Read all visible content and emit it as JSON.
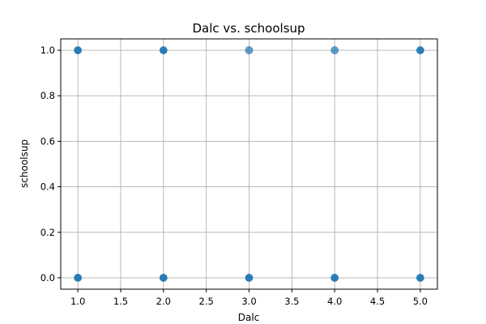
{
  "chart_data": {
    "type": "scatter",
    "title": "Dalc vs. schoolsup",
    "xlabel": "Dalc",
    "ylabel": "schoolsup",
    "xlim": [
      0.8,
      5.2
    ],
    "ylim": [
      -0.05,
      1.05
    ],
    "xticks": [
      "1.0",
      "1.5",
      "2.0",
      "2.5",
      "3.0",
      "3.5",
      "4.0",
      "4.5",
      "5.0"
    ],
    "yticks": [
      "0.0",
      "0.2",
      "0.4",
      "0.6",
      "0.8",
      "1.0"
    ],
    "grid": true,
    "marker_color": "#1f77b4",
    "series": [
      {
        "points": [
          {
            "x": 1,
            "y": 1,
            "density": "high"
          },
          {
            "x": 2,
            "y": 1,
            "density": "high"
          },
          {
            "x": 3,
            "y": 1,
            "density": "low"
          },
          {
            "x": 4,
            "y": 1,
            "density": "low"
          },
          {
            "x": 5,
            "y": 1,
            "density": "high"
          },
          {
            "x": 1,
            "y": 0,
            "density": "high"
          },
          {
            "x": 2,
            "y": 0,
            "density": "high"
          },
          {
            "x": 3,
            "y": 0,
            "density": "high"
          },
          {
            "x": 4,
            "y": 0,
            "density": "high"
          },
          {
            "x": 5,
            "y": 0,
            "density": "high"
          }
        ]
      }
    ]
  }
}
